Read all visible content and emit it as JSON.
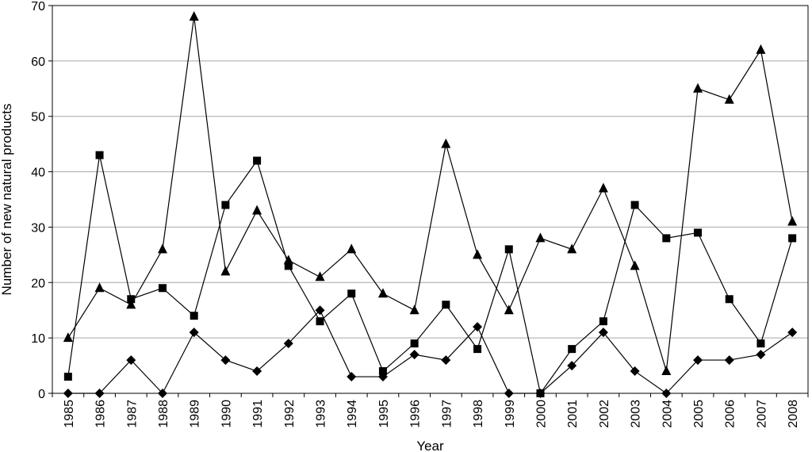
{
  "chart_data": {
    "type": "line",
    "title": "",
    "xlabel": "Year",
    "ylabel": "Number of new natural products",
    "ylim": [
      0,
      70
    ],
    "yticks": [
      0,
      10,
      20,
      30,
      40,
      50,
      60,
      70
    ],
    "grid": "horizontal",
    "legend": "none",
    "categories": [
      "1985",
      "1986",
      "1987",
      "1988",
      "1989",
      "1990",
      "1991",
      "1992",
      "1993",
      "1994",
      "1995",
      "1996",
      "1997",
      "1998",
      "1999",
      "2000",
      "2001",
      "2002",
      "2003",
      "2004",
      "2005",
      "2006",
      "2007",
      "2008"
    ],
    "series": [
      {
        "marker": "diamond",
        "values": [
          0,
          0,
          6,
          0,
          11,
          6,
          4,
          9,
          15,
          3,
          3,
          7,
          6,
          12,
          0,
          0,
          5,
          11,
          4,
          0,
          6,
          6,
          7,
          11
        ]
      },
      {
        "marker": "square",
        "values": [
          3,
          43,
          17,
          19,
          14,
          34,
          42,
          23,
          13,
          18,
          4,
          9,
          16,
          8,
          26,
          0,
          8,
          13,
          34,
          28,
          29,
          17,
          9,
          28
        ]
      },
      {
        "marker": "triangle",
        "values": [
          10,
          19,
          16,
          26,
          68,
          22,
          33,
          24,
          21,
          26,
          18,
          15,
          45,
          25,
          15,
          28,
          26,
          37,
          23,
          4,
          55,
          53,
          62,
          31
        ]
      }
    ],
    "colors": {
      "line": "#000000",
      "grid": "#a6a6a6",
      "background": "#ffffff"
    }
  }
}
